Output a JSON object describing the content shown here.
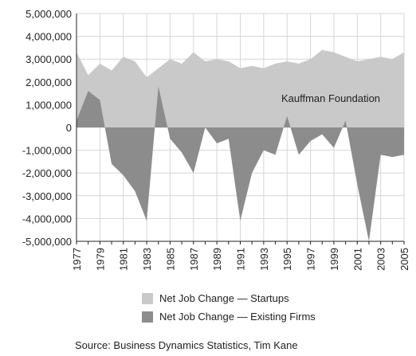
{
  "colors": {
    "startups": "#c9c9c9",
    "existing": "#8c8c8c",
    "grid": "#d6d6d6",
    "axis": "#222222"
  },
  "annotation": "Kauffman Foundation",
  "source": "Source: Business Dynamics Statistics, Tim Kane",
  "chart_data": {
    "type": "area",
    "title": "",
    "xlabel": "",
    "ylabel": "",
    "ylim": [
      -5000000,
      5000000
    ],
    "y_ticks": [
      "5,000,000",
      "4,000,000",
      "3,000,000",
      "2,000,000",
      "1,000,000",
      "0",
      "-1,000,000",
      "-2,000,000",
      "-3,000,000",
      "-4,000,000",
      "-5,000,000"
    ],
    "y_tick_values": [
      5000000,
      4000000,
      3000000,
      2000000,
      1000000,
      0,
      -1000000,
      -2000000,
      -3000000,
      -4000000,
      -5000000
    ],
    "x": [
      1977,
      1978,
      1979,
      1980,
      1981,
      1982,
      1983,
      1984,
      1985,
      1986,
      1987,
      1988,
      1989,
      1990,
      1991,
      1992,
      1993,
      1994,
      1995,
      1996,
      1997,
      1998,
      1999,
      2000,
      2001,
      2002,
      2003,
      2004,
      2005
    ],
    "x_tick_labels": [
      "1977",
      "1979",
      "1981",
      "1983",
      "1985",
      "1987",
      "1989",
      "1991",
      "1993",
      "1995",
      "1997",
      "1999",
      "2001",
      "2003",
      "2005"
    ],
    "grid": true,
    "legend": "bottom",
    "series": [
      {
        "name": "Net Job Change — Startups",
        "values": [
          3300000,
          2300000,
          2800000,
          2500000,
          3100000,
          2900000,
          2200000,
          2600000,
          3000000,
          2800000,
          3300000,
          2900000,
          3000000,
          2900000,
          2600000,
          2700000,
          2600000,
          2800000,
          2900000,
          2800000,
          3000000,
          3400000,
          3300000,
          3100000,
          2900000,
          3000000,
          3100000,
          3000000,
          3300000
        ]
      },
      {
        "name": "Net Job Change — Existing Firms",
        "values": [
          300000,
          1600000,
          1200000,
          -1600000,
          -2100000,
          -2800000,
          -4100000,
          1800000,
          -500000,
          -1100000,
          -2000000,
          0,
          -700000,
          -500000,
          -4100000,
          -2000000,
          -1000000,
          -1200000,
          500000,
          -1200000,
          -600000,
          -300000,
          -900000,
          300000,
          -2500000,
          -5000000,
          -1200000,
          -1300000,
          -1200000
        ]
      }
    ]
  }
}
